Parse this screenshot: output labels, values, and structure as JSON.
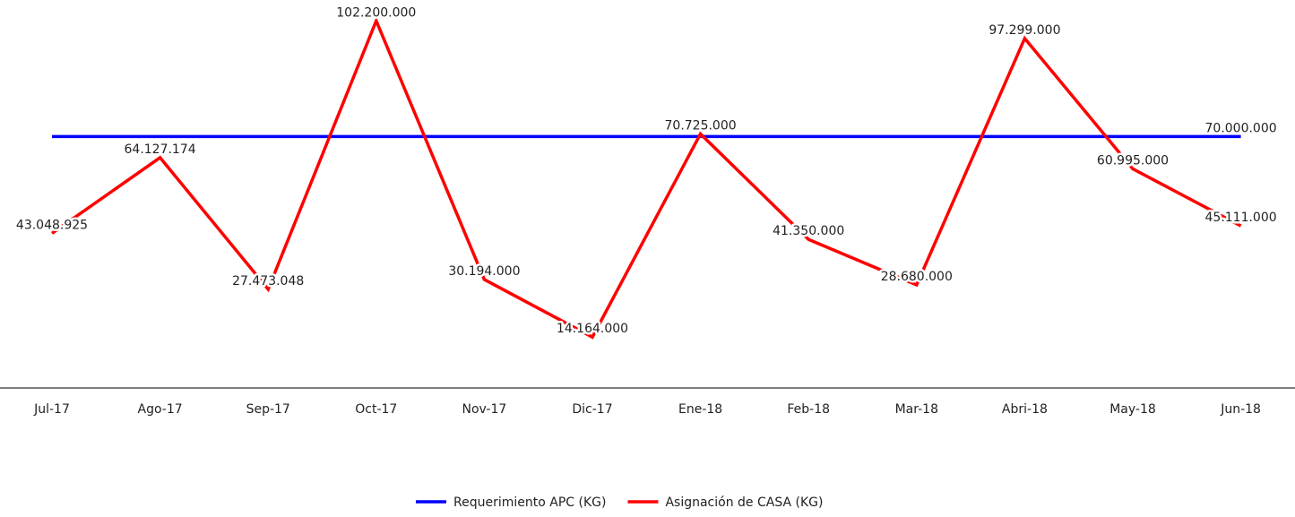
{
  "chart_data": {
    "type": "line",
    "categories": [
      "Jul-17",
      "Ago-17",
      "Sep-17",
      "Oct-17",
      "Nov-17",
      "Dic-17",
      "Ene-18",
      "Feb-18",
      "Mar-18",
      "Abri-18",
      "May-18",
      "Jun-18"
    ],
    "series": [
      {
        "name": "Requerimiento APC (KG)",
        "color": "#0000ff",
        "values": [
          70000000,
          70000000,
          70000000,
          70000000,
          70000000,
          70000000,
          70000000,
          70000000,
          70000000,
          70000000,
          70000000,
          70000000
        ],
        "value_labels": [
          null,
          null,
          null,
          null,
          null,
          null,
          null,
          null,
          null,
          null,
          null,
          "70.000.000"
        ]
      },
      {
        "name": "Asignación de CASA (KG)",
        "color": "#ff0000",
        "values": [
          43048925,
          64127174,
          27473048,
          102200000,
          30194000,
          14164000,
          70725000,
          41350000,
          28680000,
          97299000,
          60995000,
          45111000
        ],
        "value_labels": [
          "43.048.925",
          "64.127.174",
          "27.473.048",
          "102.200.000",
          "30.194.000",
          "14.164.000",
          "70.725.000",
          "41.350.000",
          "28.680.000",
          "97.299.000",
          "60.995.000",
          "45.111.000"
        ]
      }
    ],
    "ylim": [
      0,
      108000000
    ],
    "legend": "bottom"
  }
}
